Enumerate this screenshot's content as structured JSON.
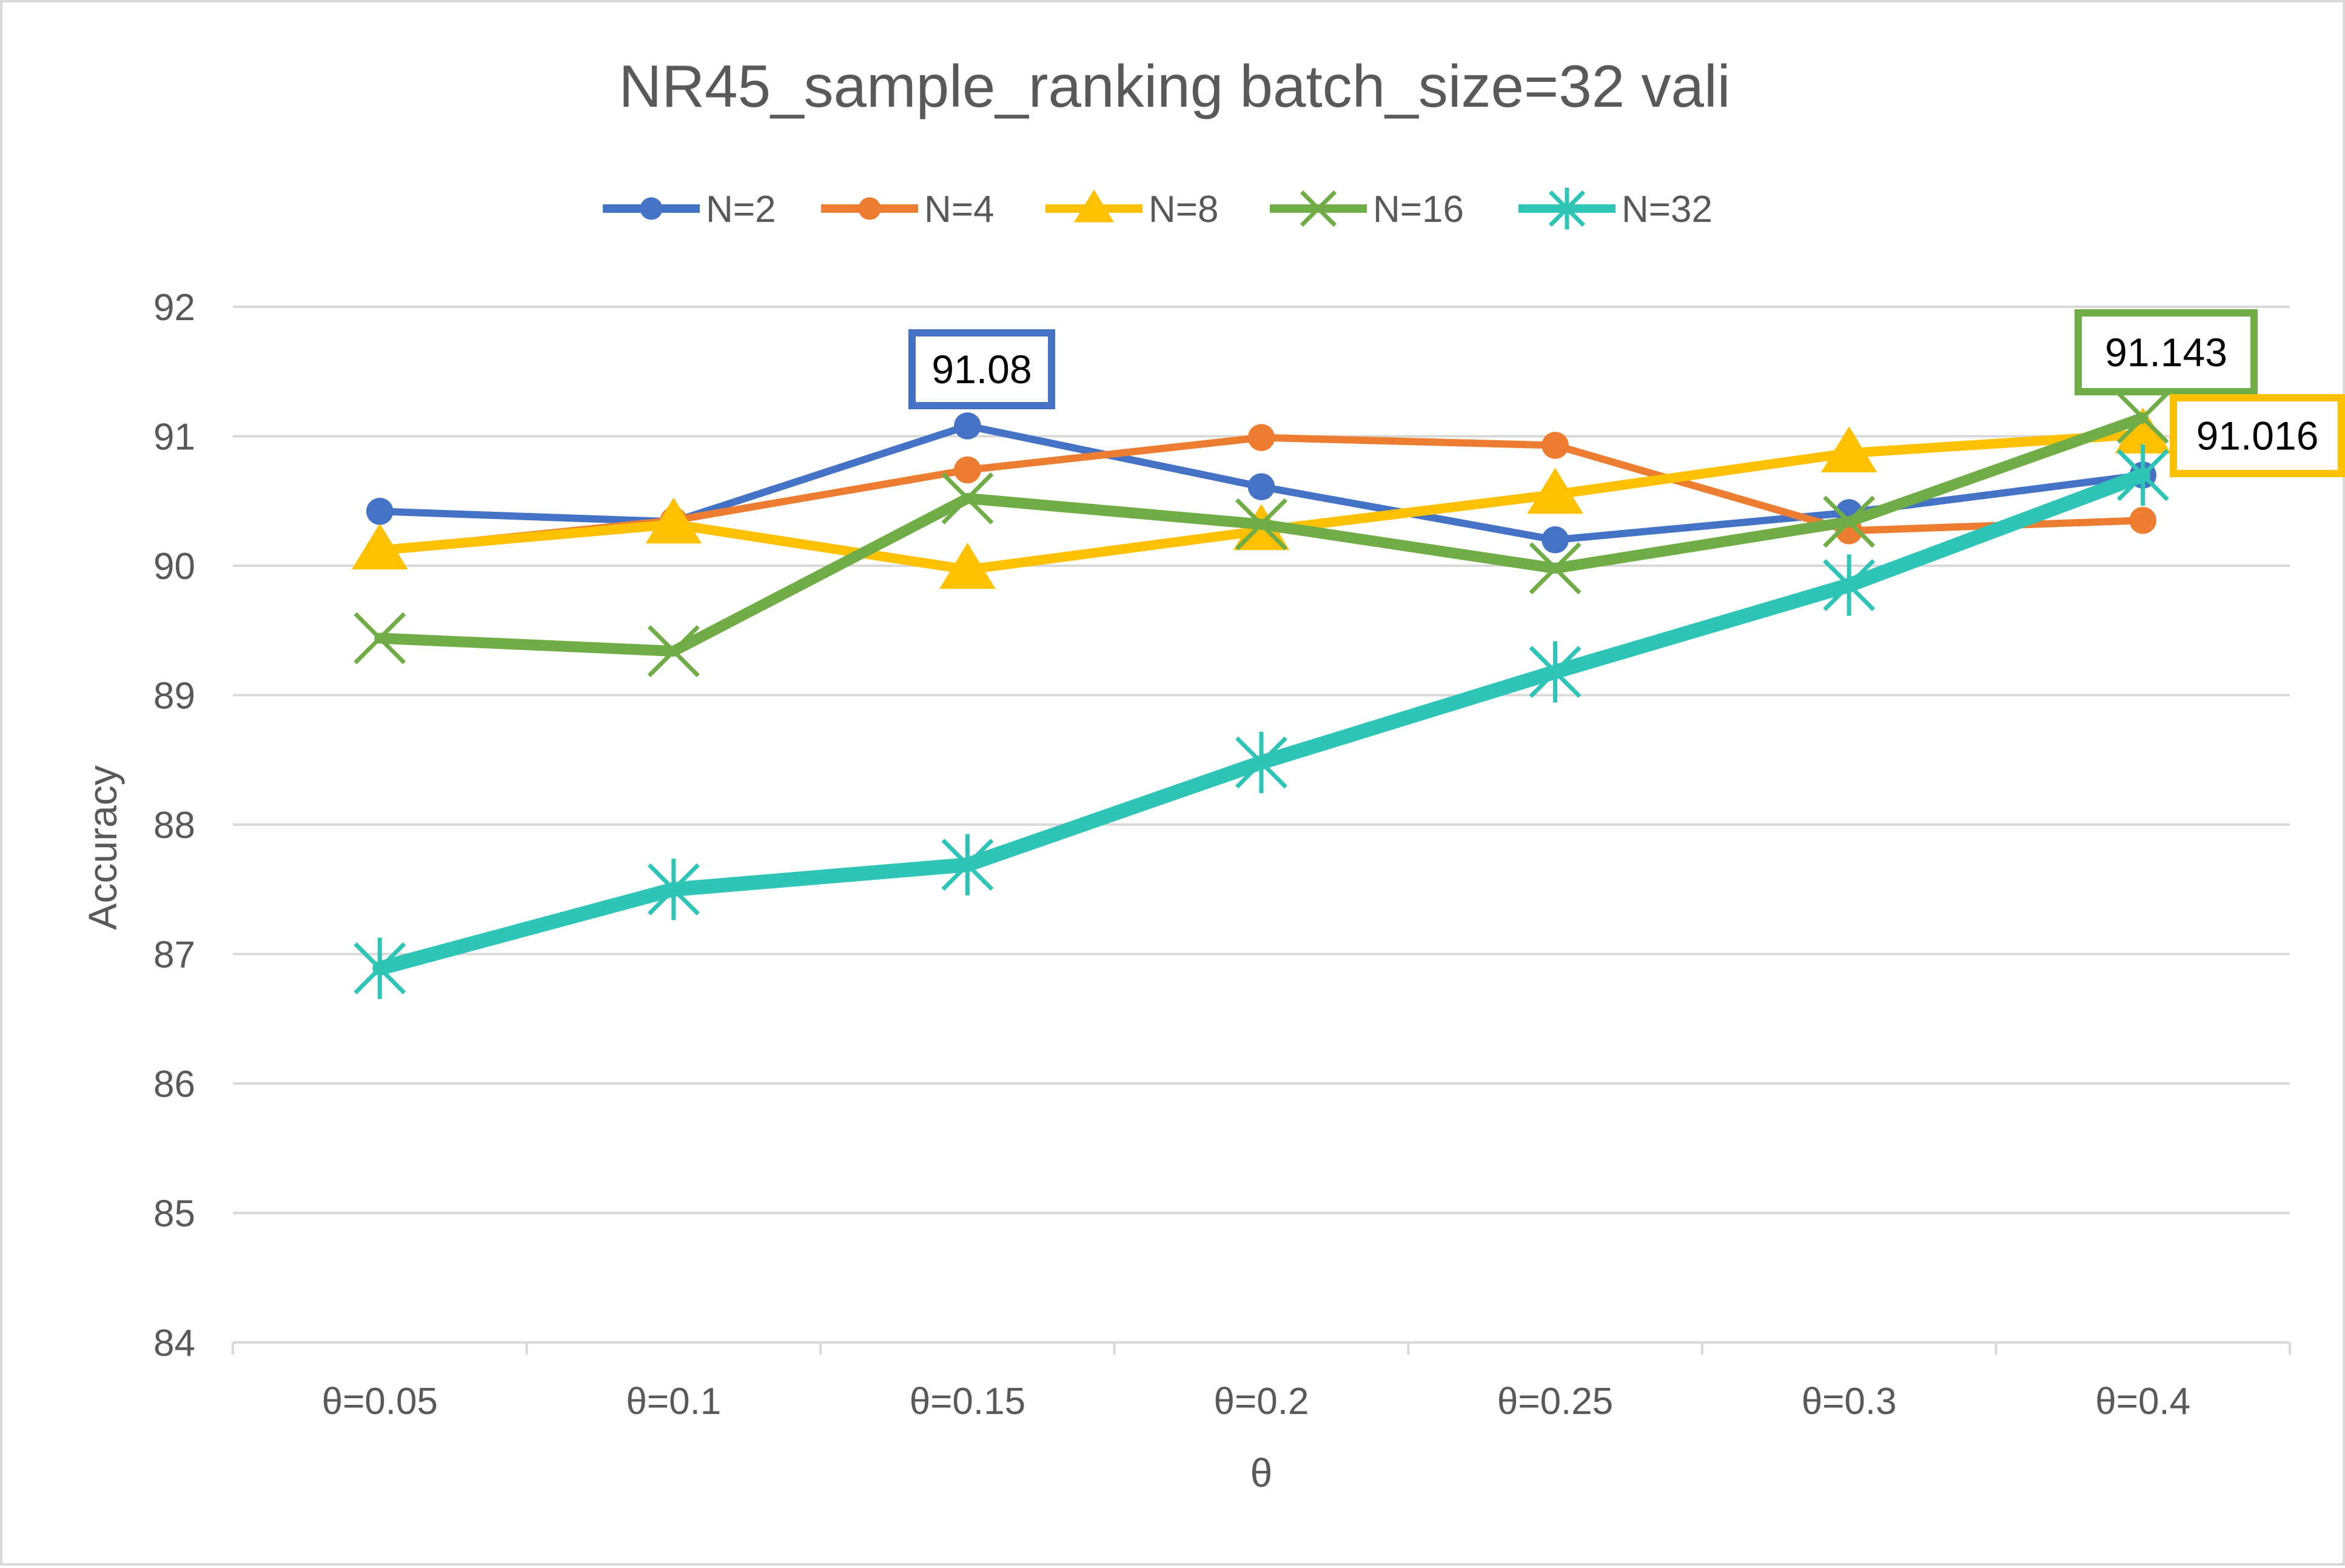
{
  "chart_data": {
    "type": "line",
    "title": "NR45_sample_ranking batch_size=32  vali",
    "xlabel": "θ",
    "ylabel": "Accuracy",
    "ylim": [
      84,
      92
    ],
    "yticks": [
      "84",
      "85",
      "86",
      "87",
      "88",
      "89",
      "90",
      "91",
      "92"
    ],
    "categories": [
      "θ=0.05",
      "θ=0.1",
      "θ=0.15",
      "θ=0.2",
      "θ=0.25",
      "θ=0.3",
      "θ=0.4"
    ],
    "grid": true,
    "legend_position": "top",
    "series": [
      {
        "name": "N=2",
        "color": "#4472C4",
        "marker": "circle",
        "values": [
          90.42,
          90.34,
          91.08,
          90.61,
          90.2,
          90.41,
          90.7
        ]
      },
      {
        "name": "N=4",
        "color": "#ED7D31",
        "marker": "circle",
        "values": [
          90.12,
          90.35,
          90.74,
          90.99,
          90.93,
          90.27,
          90.35
        ]
      },
      {
        "name": "N=8",
        "color": "#FFC000",
        "marker": "triangle",
        "values": [
          90.12,
          90.32,
          89.97,
          90.27,
          90.55,
          90.87,
          91.016
        ]
      },
      {
        "name": "N=16",
        "color": "#70AD47",
        "marker": "x",
        "values": [
          89.44,
          89.34,
          90.52,
          90.32,
          89.98,
          90.34,
          91.143
        ]
      },
      {
        "name": "N=32",
        "color": "#2EC4B6",
        "marker": "star",
        "values": [
          86.89,
          87.5,
          87.69,
          88.48,
          89.18,
          89.85,
          90.7
        ]
      }
    ],
    "annotations": [
      {
        "series": "N=2",
        "category": "θ=0.15",
        "text": "91.08",
        "color": "#4472C4"
      },
      {
        "series": "N=16",
        "category": "θ=0.4",
        "text": "91.143",
        "color": "#70AD47"
      },
      {
        "series": "N=8",
        "category": "θ=0.4",
        "text": "91.016",
        "color": "#FFC000"
      }
    ]
  }
}
